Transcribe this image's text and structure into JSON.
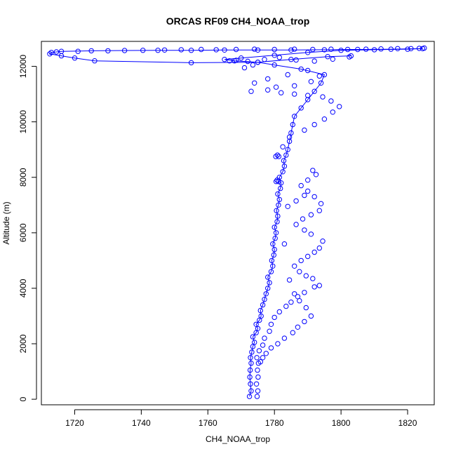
{
  "chart_data": {
    "type": "scatter",
    "title": "ORCAS RF09 CH4_NOAA_trop",
    "xlabel": "CH4_NOAA_trop",
    "ylabel": "Altitude (m)",
    "xlim": [
      1710,
      1828
    ],
    "ylim": [
      -200,
      12900
    ],
    "xticks": [
      1720,
      1740,
      1760,
      1780,
      1800,
      1820
    ],
    "yticks": [
      0,
      2000,
      4000,
      6000,
      8000,
      10000,
      12000
    ],
    "grid": false,
    "legend": "none",
    "series": [
      {
        "color": "#0000ff",
        "points": [
          [
            1772.5,
            100
          ],
          [
            1773.0,
            300
          ],
          [
            1772.8,
            550
          ],
          [
            1772.6,
            800
          ],
          [
            1772.7,
            1050
          ],
          [
            1773.0,
            1300
          ],
          [
            1772.8,
            1500
          ],
          [
            1773.2,
            1700
          ],
          [
            1773.5,
            1900
          ],
          [
            1774.0,
            2050
          ],
          [
            1773.5,
            2250
          ],
          [
            1774.5,
            2400
          ],
          [
            1775.0,
            2550
          ],
          [
            1774.5,
            2700
          ],
          [
            1775.5,
            2850
          ],
          [
            1776.0,
            3000
          ],
          [
            1775.8,
            3200
          ],
          [
            1776.5,
            3400
          ],
          [
            1777.0,
            3600
          ],
          [
            1777.5,
            3800
          ],
          [
            1778.0,
            4000
          ],
          [
            1778.5,
            4200
          ],
          [
            1778.0,
            4400
          ],
          [
            1779.0,
            4600
          ],
          [
            1779.5,
            4800
          ],
          [
            1779.2,
            5000
          ],
          [
            1779.8,
            5200
          ],
          [
            1780.0,
            5400
          ],
          [
            1779.5,
            5600
          ],
          [
            1780.2,
            5800
          ],
          [
            1780.5,
            6000
          ],
          [
            1780.0,
            6200
          ],
          [
            1780.8,
            6400
          ],
          [
            1781.0,
            6600
          ],
          [
            1780.6,
            6800
          ],
          [
            1781.2,
            7000
          ],
          [
            1781.5,
            7200
          ],
          [
            1781.0,
            7400
          ],
          [
            1781.8,
            7600
          ],
          [
            1782.0,
            7800
          ],
          [
            1781.5,
            8000
          ],
          [
            1782.5,
            8200
          ],
          [
            1783.0,
            8400
          ],
          [
            1782.8,
            8600
          ],
          [
            1783.5,
            8800
          ],
          [
            1784.0,
            9000
          ],
          [
            1784.5,
            9300
          ],
          [
            1785.0,
            9600
          ],
          [
            1785.5,
            9900
          ],
          [
            1786.0,
            10200
          ],
          [
            1788.0,
            10500
          ],
          [
            1790.0,
            10800
          ],
          [
            1792.0,
            11100
          ],
          [
            1794.0,
            11400
          ],
          [
            1795.0,
            11700
          ],
          [
            1788.0,
            11900
          ],
          [
            1780.0,
            12050
          ],
          [
            1775.0,
            12150
          ],
          [
            1768.0,
            12200
          ],
          [
            1765.0,
            12250
          ],
          [
            1770.0,
            12300
          ],
          [
            1780.0,
            12400
          ],
          [
            1790.0,
            12500
          ],
          [
            1800.0,
            12580
          ],
          [
            1810.0,
            12600
          ],
          [
            1820.0,
            12620
          ],
          [
            1824.5,
            12640
          ],
          [
            1815.0,
            12620
          ],
          [
            1805.0,
            12610
          ],
          [
            1795.0,
            12600
          ],
          [
            1785.0,
            12590
          ],
          [
            1775.0,
            12590
          ],
          [
            1765.0,
            12590
          ],
          [
            1755.0,
            12580
          ],
          [
            1745.0,
            12580
          ],
          [
            1735.0,
            12570
          ],
          [
            1725.0,
            12560
          ],
          [
            1716.0,
            12540
          ],
          [
            1713.0,
            12500
          ],
          [
            1712.5,
            12450
          ],
          [
            1716.0,
            12380
          ],
          [
            1720.0,
            12300
          ],
          [
            1726.0,
            12200
          ],
          [
            1755.0,
            12130
          ],
          [
            1775.0,
            12150
          ],
          [
            1785.0,
            12250
          ],
          [
            1796.0,
            12350
          ],
          [
            1803.0,
            12380
          ]
        ],
        "scatter_only": [
          [
            1774.8,
            100
          ],
          [
            1775.0,
            300
          ],
          [
            1774.6,
            550
          ],
          [
            1775.1,
            800
          ],
          [
            1774.9,
            1050
          ],
          [
            1775.2,
            1300
          ],
          [
            1774.7,
            1500
          ],
          [
            1775.4,
            1750
          ],
          [
            1776.5,
            1950
          ],
          [
            1777.0,
            2200
          ],
          [
            1778.5,
            2450
          ],
          [
            1779.0,
            2700
          ],
          [
            1780.0,
            2950
          ],
          [
            1781.5,
            3150
          ],
          [
            1783.5,
            3350
          ],
          [
            1785.0,
            3500
          ],
          [
            1787.0,
            3700
          ],
          [
            1789.0,
            3850
          ],
          [
            1792.0,
            4050
          ],
          [
            1793.5,
            4100
          ],
          [
            1791.5,
            4350
          ],
          [
            1789.5,
            4450
          ],
          [
            1787.5,
            4600
          ],
          [
            1786.0,
            4800
          ],
          [
            1788.0,
            5000
          ],
          [
            1790.0,
            5150
          ],
          [
            1792.0,
            5300
          ],
          [
            1793.5,
            5450
          ],
          [
            1794.5,
            5700
          ],
          [
            1791.0,
            5950
          ],
          [
            1789.0,
            6100
          ],
          [
            1786.5,
            6300
          ],
          [
            1788.5,
            6500
          ],
          [
            1791.0,
            6650
          ],
          [
            1793.5,
            6800
          ],
          [
            1794.0,
            7050
          ],
          [
            1792.0,
            7300
          ],
          [
            1790.0,
            7500
          ],
          [
            1788.0,
            7700
          ],
          [
            1790.0,
            7900
          ],
          [
            1792.5,
            8100
          ],
          [
            1791.5,
            8250
          ],
          [
            1789.0,
            7350
          ],
          [
            1786.5,
            7150
          ],
          [
            1784.0,
            6950
          ],
          [
            1783.0,
            5600
          ],
          [
            1784.5,
            4300
          ],
          [
            1786.0,
            3800
          ],
          [
            1787.5,
            3550
          ],
          [
            1789.5,
            3300
          ],
          [
            1791.0,
            3000
          ],
          [
            1789.0,
            2800
          ],
          [
            1787.0,
            2600
          ],
          [
            1785.5,
            2400
          ],
          [
            1783.0,
            2200
          ],
          [
            1781.0,
            2000
          ],
          [
            1779.0,
            1850
          ],
          [
            1777.5,
            1650
          ],
          [
            1776.5,
            1500
          ],
          [
            1775.8,
            1350
          ],
          [
            1780.5,
            7850
          ],
          [
            1780.8,
            7900
          ],
          [
            1781.2,
            7850
          ],
          [
            1780.4,
            8750
          ],
          [
            1780.9,
            8800
          ],
          [
            1781.3,
            8750
          ],
          [
            1782.5,
            9100
          ],
          [
            1784.5,
            9450
          ],
          [
            1789.0,
            9700
          ],
          [
            1792.0,
            9900
          ],
          [
            1795.0,
            10100
          ],
          [
            1797.5,
            10350
          ],
          [
            1799.5,
            10550
          ],
          [
            1797.0,
            10750
          ],
          [
            1794.5,
            10900
          ],
          [
            1790.0,
            10950
          ],
          [
            1786.0,
            11000
          ],
          [
            1782.0,
            11050
          ],
          [
            1778.0,
            11150
          ],
          [
            1773.0,
            11100
          ],
          [
            1780.5,
            11250
          ],
          [
            1786.0,
            11300
          ],
          [
            1791.0,
            11450
          ],
          [
            1793.5,
            11650
          ],
          [
            1790.0,
            11850
          ],
          [
            1784.0,
            11700
          ],
          [
            1778.0,
            11550
          ],
          [
            1774.0,
            11400
          ],
          [
            1771.0,
            11950
          ],
          [
            1773.5,
            12050
          ],
          [
            1766.5,
            12200
          ],
          [
            1768.5,
            12220
          ],
          [
            1772.0,
            12180
          ],
          [
            1777.0,
            12250
          ],
          [
            1781.5,
            12320
          ],
          [
            1786.5,
            12230
          ],
          [
            1792.0,
            12190
          ],
          [
            1797.5,
            12260
          ],
          [
            1802.5,
            12340
          ],
          [
            1747.0,
            12590
          ],
          [
            1752.0,
            12600
          ],
          [
            1758.0,
            12610
          ],
          [
            1762.5,
            12600
          ],
          [
            1768.5,
            12610
          ],
          [
            1774.0,
            12620
          ],
          [
            1780.0,
            12610
          ],
          [
            1786.0,
            12620
          ],
          [
            1791.5,
            12610
          ],
          [
            1797.0,
            12620
          ],
          [
            1802.0,
            12610
          ],
          [
            1807.5,
            12620
          ],
          [
            1812.0,
            12630
          ],
          [
            1817.0,
            12640
          ],
          [
            1821.0,
            12640
          ],
          [
            1823.5,
            12650
          ],
          [
            1825.0,
            12660
          ],
          [
            1740.5,
            12580
          ],
          [
            1730.0,
            12560
          ],
          [
            1721.0,
            12540
          ],
          [
            1714.5,
            12520
          ]
        ]
      }
    ]
  }
}
